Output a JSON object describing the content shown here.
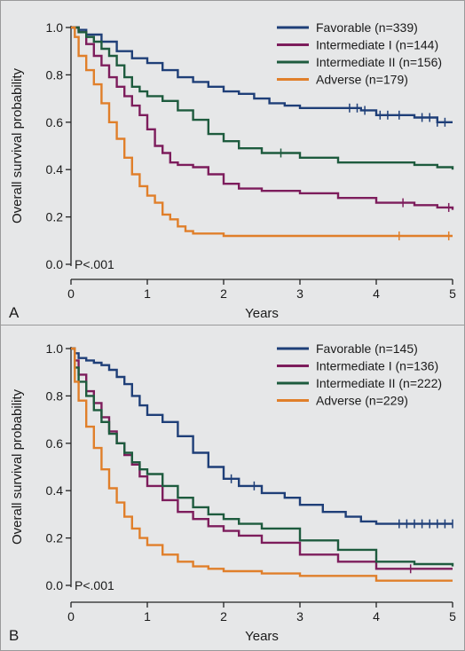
{
  "chart_data": [
    {
      "type": "line",
      "panel_label": "A",
      "xlabel": "Years",
      "ylabel": "Overall survival probability",
      "xlim": [
        0,
        5
      ],
      "ylim": [
        0,
        1
      ],
      "x_ticks": [
        "0",
        "1",
        "2",
        "3",
        "4",
        "5"
      ],
      "y_ticks": [
        "0.0",
        "0.2",
        "0.4",
        "0.6",
        "0.8",
        "1.0"
      ],
      "annotation": "P<.001",
      "legend_position": "top-right",
      "series": [
        {
          "name": "Favorable (n=339)",
          "color": "#1f3f78",
          "points": [
            [
              0,
              1.0
            ],
            [
              0.1,
              0.99
            ],
            [
              0.2,
              0.97
            ],
            [
              0.4,
              0.94
            ],
            [
              0.6,
              0.9
            ],
            [
              0.8,
              0.87
            ],
            [
              1.0,
              0.85
            ],
            [
              1.2,
              0.82
            ],
            [
              1.4,
              0.79
            ],
            [
              1.6,
              0.77
            ],
            [
              1.8,
              0.75
            ],
            [
              2.0,
              0.73
            ],
            [
              2.2,
              0.72
            ],
            [
              2.4,
              0.7
            ],
            [
              2.6,
              0.68
            ],
            [
              2.8,
              0.67
            ],
            [
              3.0,
              0.66
            ],
            [
              3.5,
              0.66
            ],
            [
              3.8,
              0.65
            ],
            [
              4.0,
              0.63
            ],
            [
              4.5,
              0.62
            ],
            [
              4.8,
              0.6
            ],
            [
              5.0,
              0.6
            ]
          ],
          "censor_x": [
            3.65,
            3.75,
            3.85,
            4.05,
            4.15,
            4.3,
            4.6,
            4.7,
            4.8,
            4.9
          ]
        },
        {
          "name": "Intermediate I (n=144)",
          "color": "#7d1d5c",
          "points": [
            [
              0,
              1.0
            ],
            [
              0.1,
              0.98
            ],
            [
              0.2,
              0.93
            ],
            [
              0.3,
              0.88
            ],
            [
              0.4,
              0.84
            ],
            [
              0.5,
              0.79
            ],
            [
              0.6,
              0.75
            ],
            [
              0.7,
              0.71
            ],
            [
              0.8,
              0.67
            ],
            [
              0.9,
              0.63
            ],
            [
              1.0,
              0.57
            ],
            [
              1.1,
              0.5
            ],
            [
              1.2,
              0.47
            ],
            [
              1.3,
              0.43
            ],
            [
              1.4,
              0.42
            ],
            [
              1.6,
              0.41
            ],
            [
              1.8,
              0.38
            ],
            [
              2.0,
              0.34
            ],
            [
              2.2,
              0.32
            ],
            [
              2.5,
              0.31
            ],
            [
              3.0,
              0.3
            ],
            [
              3.5,
              0.28
            ],
            [
              4.0,
              0.26
            ],
            [
              4.5,
              0.25
            ],
            [
              4.8,
              0.24
            ],
            [
              5.0,
              0.23
            ]
          ],
          "censor_x": [
            4.35,
            4.95
          ]
        },
        {
          "name": "Intermediate II (n=156)",
          "color": "#1e5b3e",
          "points": [
            [
              0,
              1.0
            ],
            [
              0.1,
              0.98
            ],
            [
              0.2,
              0.96
            ],
            [
              0.3,
              0.94
            ],
            [
              0.4,
              0.91
            ],
            [
              0.5,
              0.88
            ],
            [
              0.6,
              0.84
            ],
            [
              0.7,
              0.79
            ],
            [
              0.8,
              0.75
            ],
            [
              0.9,
              0.73
            ],
            [
              1.0,
              0.71
            ],
            [
              1.2,
              0.69
            ],
            [
              1.4,
              0.65
            ],
            [
              1.6,
              0.61
            ],
            [
              1.8,
              0.55
            ],
            [
              2.0,
              0.52
            ],
            [
              2.2,
              0.49
            ],
            [
              2.5,
              0.47
            ],
            [
              3.0,
              0.45
            ],
            [
              3.5,
              0.43
            ],
            [
              4.0,
              0.43
            ],
            [
              4.5,
              0.42
            ],
            [
              4.8,
              0.41
            ],
            [
              5.0,
              0.4
            ]
          ],
          "censor_x": [
            2.75
          ]
        },
        {
          "name": "Adverse (n=179)",
          "color": "#e07f2a",
          "points": [
            [
              0,
              1.0
            ],
            [
              0.05,
              0.96
            ],
            [
              0.1,
              0.88
            ],
            [
              0.2,
              0.82
            ],
            [
              0.3,
              0.76
            ],
            [
              0.4,
              0.68
            ],
            [
              0.5,
              0.6
            ],
            [
              0.6,
              0.53
            ],
            [
              0.7,
              0.45
            ],
            [
              0.8,
              0.38
            ],
            [
              0.9,
              0.33
            ],
            [
              1.0,
              0.29
            ],
            [
              1.1,
              0.26
            ],
            [
              1.2,
              0.21
            ],
            [
              1.3,
              0.19
            ],
            [
              1.4,
              0.16
            ],
            [
              1.5,
              0.14
            ],
            [
              1.6,
              0.13
            ],
            [
              1.8,
              0.13
            ],
            [
              2.0,
              0.12
            ],
            [
              2.2,
              0.12
            ],
            [
              2.5,
              0.12
            ],
            [
              3.0,
              0.12
            ],
            [
              4.0,
              0.12
            ],
            [
              5.0,
              0.12
            ]
          ],
          "censor_x": [
            4.3,
            4.95
          ]
        }
      ]
    },
    {
      "type": "line",
      "panel_label": "B",
      "xlabel": "Years",
      "ylabel": "Overall survival probability",
      "xlim": [
        0,
        5
      ],
      "ylim": [
        0,
        1
      ],
      "x_ticks": [
        "0",
        "1",
        "2",
        "3",
        "4",
        "5"
      ],
      "y_ticks": [
        "0.0",
        "0.2",
        "0.4",
        "0.6",
        "0.8",
        "1.0"
      ],
      "annotation": "P<.001",
      "legend_position": "top-right",
      "series": [
        {
          "name": "Favorable (n=145)",
          "color": "#1f3f78",
          "points": [
            [
              0,
              1.0
            ],
            [
              0.05,
              0.98
            ],
            [
              0.1,
              0.96
            ],
            [
              0.2,
              0.95
            ],
            [
              0.3,
              0.94
            ],
            [
              0.4,
              0.93
            ],
            [
              0.5,
              0.91
            ],
            [
              0.6,
              0.88
            ],
            [
              0.7,
              0.85
            ],
            [
              0.8,
              0.8
            ],
            [
              0.9,
              0.76
            ],
            [
              1.0,
              0.72
            ],
            [
              1.2,
              0.69
            ],
            [
              1.4,
              0.63
            ],
            [
              1.6,
              0.56
            ],
            [
              1.8,
              0.5
            ],
            [
              2.0,
              0.45
            ],
            [
              2.2,
              0.42
            ],
            [
              2.5,
              0.39
            ],
            [
              2.8,
              0.37
            ],
            [
              3.0,
              0.34
            ],
            [
              3.3,
              0.31
            ],
            [
              3.6,
              0.29
            ],
            [
              3.8,
              0.27
            ],
            [
              4.0,
              0.26
            ],
            [
              5.0,
              0.26
            ]
          ],
          "censor_x": [
            2.1,
            2.4,
            4.3,
            4.4,
            4.5,
            4.6,
            4.7,
            4.8,
            4.9,
            5.0
          ]
        },
        {
          "name": "Intermediate I (n=136)",
          "color": "#7d1d5c",
          "points": [
            [
              0,
              1.0
            ],
            [
              0.05,
              0.95
            ],
            [
              0.1,
              0.89
            ],
            [
              0.2,
              0.82
            ],
            [
              0.3,
              0.77
            ],
            [
              0.4,
              0.71
            ],
            [
              0.5,
              0.65
            ],
            [
              0.6,
              0.6
            ],
            [
              0.7,
              0.55
            ],
            [
              0.8,
              0.51
            ],
            [
              0.9,
              0.46
            ],
            [
              1.0,
              0.42
            ],
            [
              1.2,
              0.36
            ],
            [
              1.4,
              0.31
            ],
            [
              1.6,
              0.28
            ],
            [
              1.8,
              0.25
            ],
            [
              2.0,
              0.23
            ],
            [
              2.2,
              0.21
            ],
            [
              2.5,
              0.18
            ],
            [
              3.0,
              0.13
            ],
            [
              3.5,
              0.1
            ],
            [
              4.0,
              0.07
            ],
            [
              5.0,
              0.07
            ]
          ],
          "censor_x": [
            4.45
          ]
        },
        {
          "name": "Intermediate II (n=222)",
          "color": "#1e5b3e",
          "points": [
            [
              0,
              1.0
            ],
            [
              0.05,
              0.92
            ],
            [
              0.1,
              0.86
            ],
            [
              0.2,
              0.8
            ],
            [
              0.3,
              0.74
            ],
            [
              0.4,
              0.69
            ],
            [
              0.5,
              0.64
            ],
            [
              0.6,
              0.6
            ],
            [
              0.7,
              0.56
            ],
            [
              0.8,
              0.52
            ],
            [
              0.9,
              0.49
            ],
            [
              1.0,
              0.47
            ],
            [
              1.2,
              0.42
            ],
            [
              1.4,
              0.37
            ],
            [
              1.6,
              0.33
            ],
            [
              1.8,
              0.3
            ],
            [
              2.0,
              0.28
            ],
            [
              2.2,
              0.26
            ],
            [
              2.5,
              0.24
            ],
            [
              3.0,
              0.19
            ],
            [
              3.5,
              0.15
            ],
            [
              4.0,
              0.1
            ],
            [
              4.5,
              0.09
            ],
            [
              5.0,
              0.08
            ]
          ],
          "censor_x": []
        },
        {
          "name": "Adverse (n=229)",
          "color": "#e07f2a",
          "points": [
            [
              0,
              1.0
            ],
            [
              0.05,
              0.86
            ],
            [
              0.1,
              0.78
            ],
            [
              0.2,
              0.67
            ],
            [
              0.3,
              0.58
            ],
            [
              0.4,
              0.49
            ],
            [
              0.5,
              0.41
            ],
            [
              0.6,
              0.35
            ],
            [
              0.7,
              0.29
            ],
            [
              0.8,
              0.24
            ],
            [
              0.9,
              0.2
            ],
            [
              1.0,
              0.17
            ],
            [
              1.2,
              0.13
            ],
            [
              1.4,
              0.1
            ],
            [
              1.6,
              0.08
            ],
            [
              1.8,
              0.07
            ],
            [
              2.0,
              0.06
            ],
            [
              2.5,
              0.05
            ],
            [
              3.0,
              0.04
            ],
            [
              4.0,
              0.02
            ],
            [
              5.0,
              0.02
            ]
          ],
          "censor_x": []
        }
      ]
    }
  ]
}
